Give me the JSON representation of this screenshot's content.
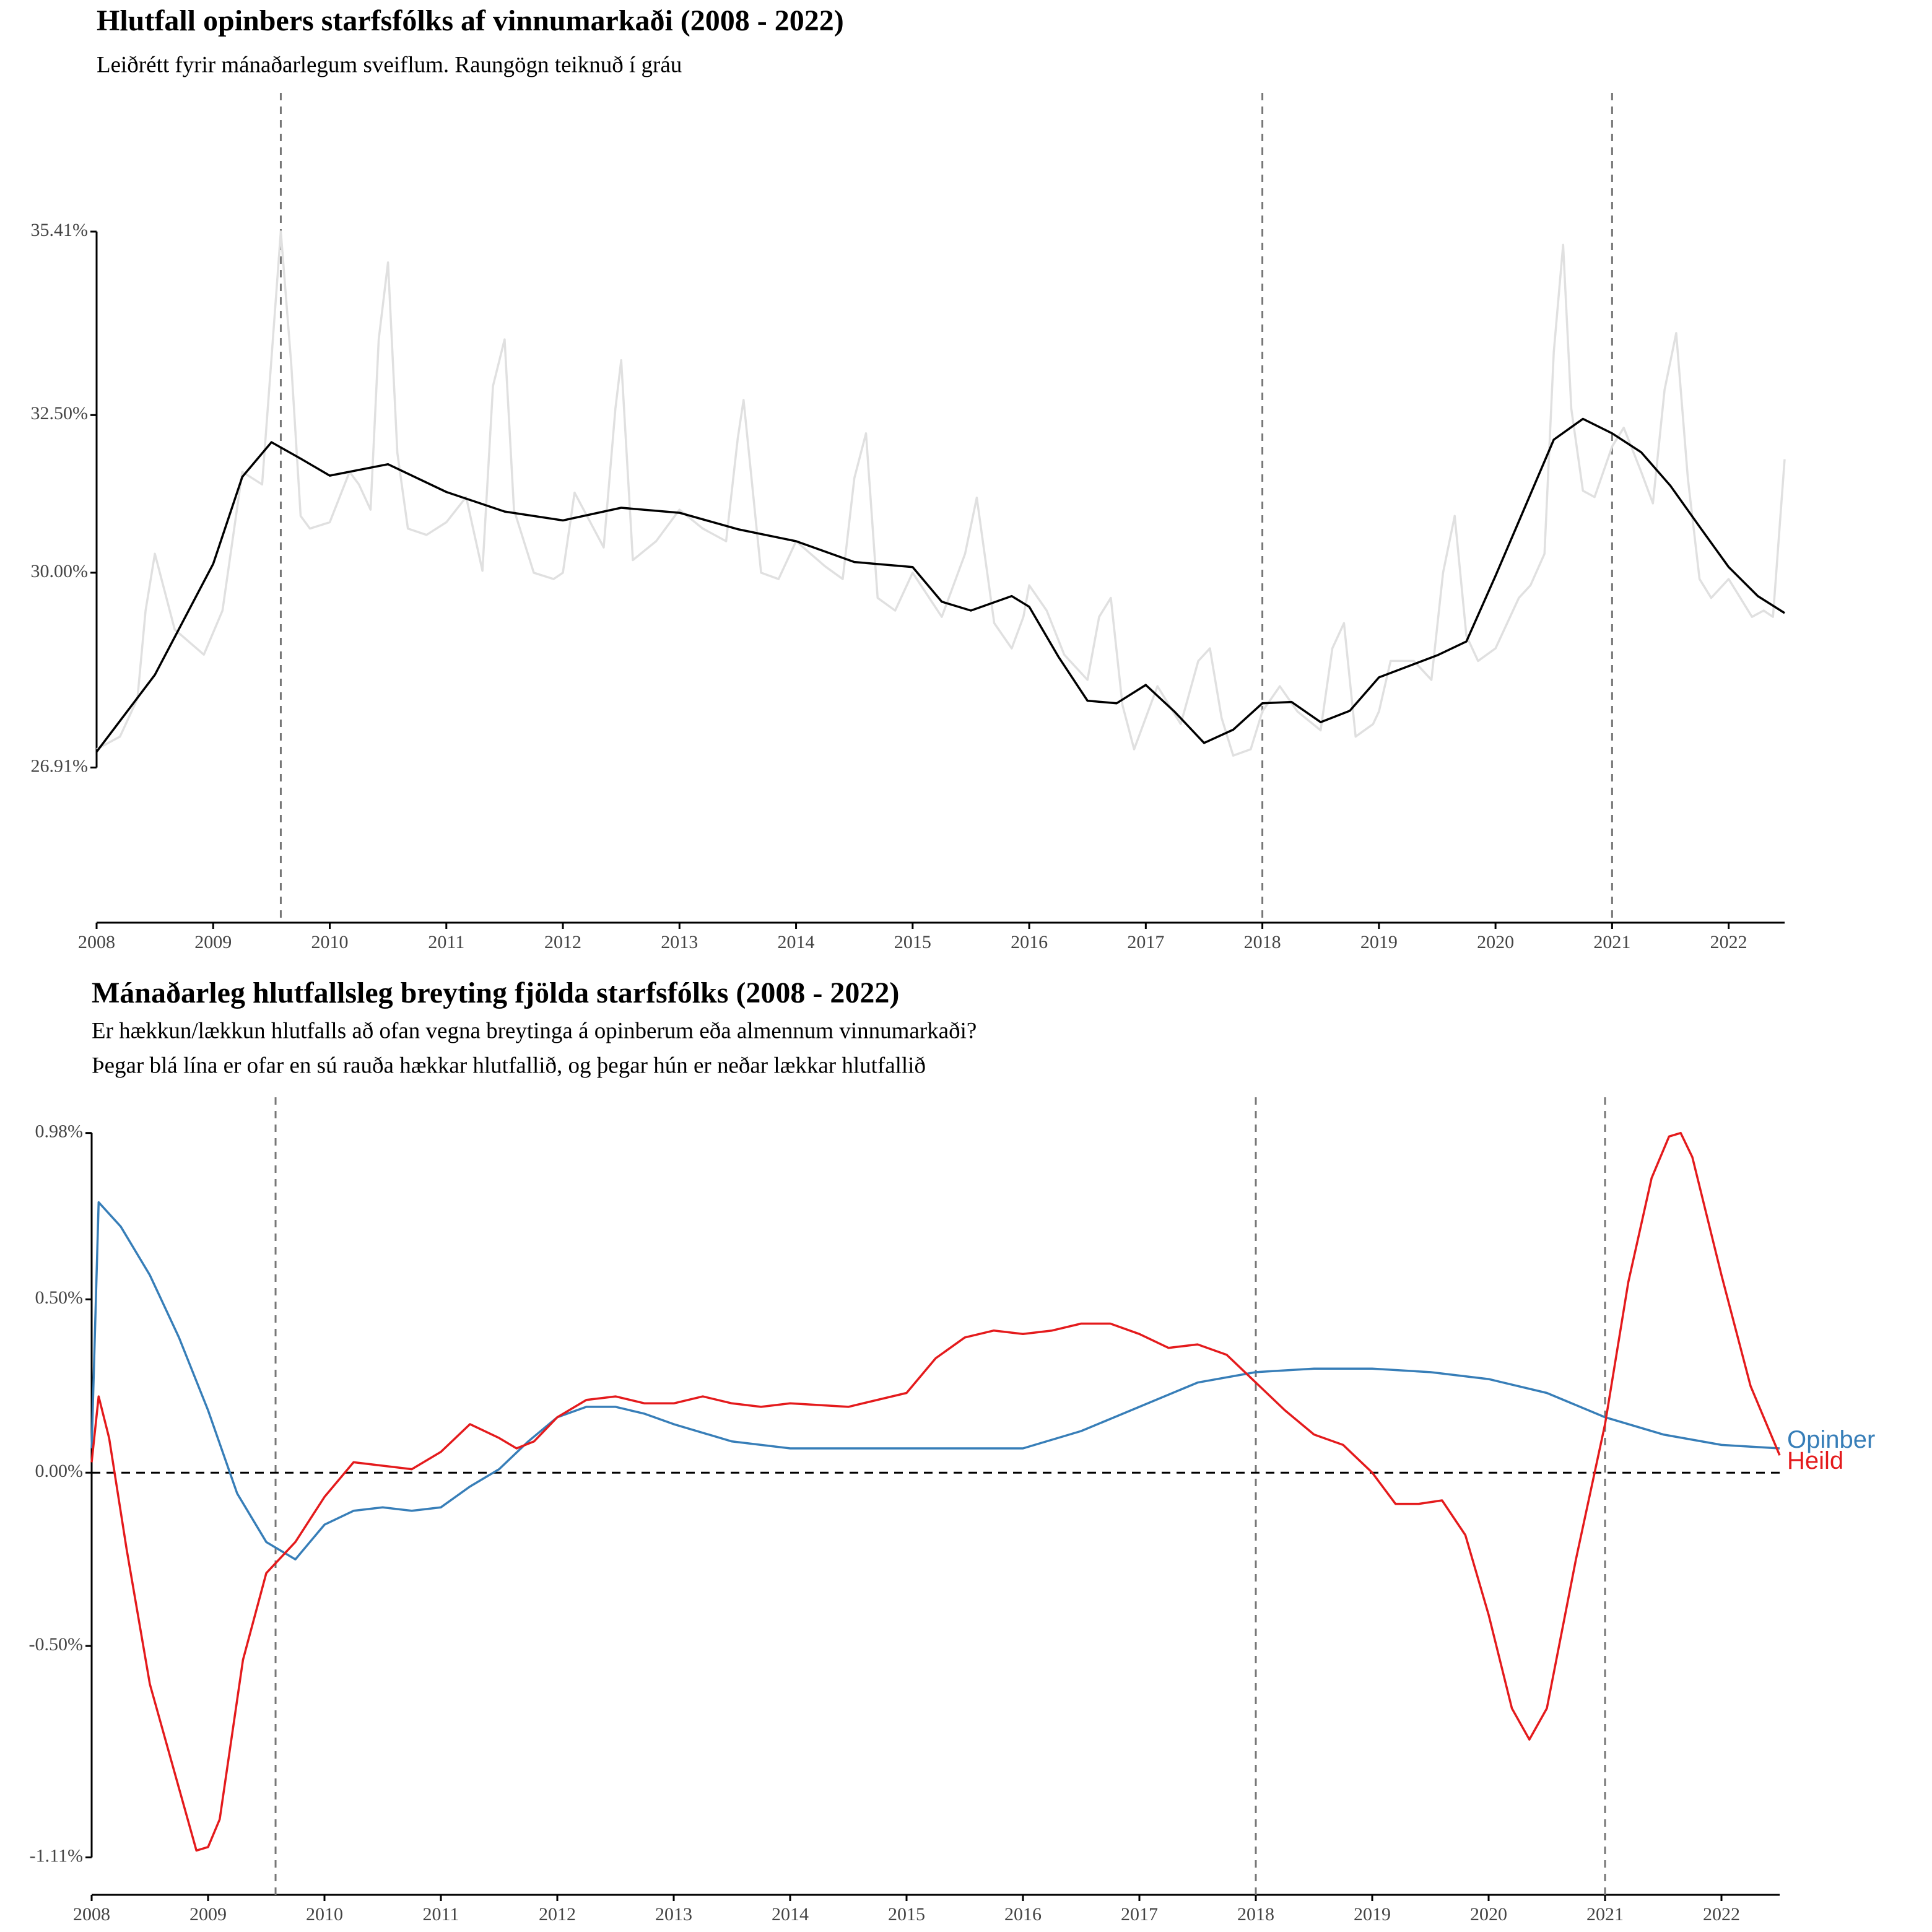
{
  "chart_data": [
    {
      "type": "line",
      "title": "Hlutfall opinbers starfsfólks af vinnumarkaði (2008 - 2022)",
      "subtitle": [
        "Leiðrétt fyrir mánaðarlegum sveiflum. Raungögn teiknuð í gráu"
      ],
      "xlim": [
        2008,
        2022.48
      ],
      "xticks": [
        2008,
        2009,
        2010,
        2011,
        2012,
        2013,
        2014,
        2015,
        2016,
        2017,
        2018,
        2019,
        2020,
        2021,
        2022
      ],
      "ylim": [
        24.45,
        37.61
      ],
      "yticks": [
        {
          "value": 26.91,
          "label": "26.91%"
        },
        {
          "value": 30.0,
          "label": "30.00%"
        },
        {
          "value": 32.5,
          "label": "32.50%"
        },
        {
          "value": 35.41,
          "label": "35.41%"
        }
      ],
      "vlines": [
        2009.58,
        2018,
        2021
      ],
      "series": [
        {
          "color": "#e0e0e0",
          "x": [
            2008.0,
            2008.2,
            2008.35,
            2008.42,
            2008.5,
            2008.67,
            2008.92,
            2009.08,
            2009.25,
            2009.42,
            2009.5,
            2009.58,
            2009.67,
            2009.75,
            2009.83,
            2010.0,
            2010.17,
            2010.25,
            2010.35,
            2010.42,
            2010.5,
            2010.58,
            2010.67,
            2010.83,
            2011.0,
            2011.17,
            2011.31,
            2011.4,
            2011.5,
            2011.58,
            2011.75,
            2011.92,
            2012.0,
            2012.1,
            2012.35,
            2012.45,
            2012.5,
            2012.6,
            2012.8,
            2013.0,
            2013.2,
            2013.4,
            2013.5,
            2013.55,
            2013.7,
            2013.85,
            2014.0,
            2014.25,
            2014.4,
            2014.5,
            2014.6,
            2014.7,
            2014.85,
            2015.0,
            2015.25,
            2015.45,
            2015.55,
            2015.7,
            2015.85,
            2015.95,
            2016.0,
            2016.15,
            2016.3,
            2016.5,
            2016.6,
            2016.7,
            2016.8,
            2016.9,
            2017.0,
            2017.1,
            2017.3,
            2017.45,
            2017.55,
            2017.65,
            2017.75,
            2017.9,
            2018.0,
            2018.15,
            2018.3,
            2018.5,
            2018.6,
            2018.7,
            2018.8,
            2018.95,
            2019.0,
            2019.1,
            2019.3,
            2019.45,
            2019.55,
            2019.65,
            2019.75,
            2019.85,
            2020.0,
            2020.2,
            2020.3,
            2020.42,
            2020.5,
            2020.58,
            2020.65,
            2020.75,
            2020.85,
            2021.0,
            2021.1,
            2021.25,
            2021.35,
            2021.45,
            2021.55,
            2021.65,
            2021.75,
            2021.85,
            2022.0,
            2022.1,
            2022.2,
            2022.3,
            2022.38,
            2022.48
          ],
          "values": [
            27.2,
            27.4,
            28.0,
            29.4,
            30.3,
            29.1,
            28.7,
            29.4,
            31.6,
            31.4,
            33.4,
            35.41,
            33.3,
            30.9,
            30.7,
            30.8,
            31.6,
            31.4,
            31.0,
            33.7,
            34.92,
            31.9,
            30.7,
            30.6,
            30.8,
            31.2,
            30.03,
            32.96,
            33.7,
            31.0,
            30.0,
            29.9,
            30.0,
            31.27,
            30.4,
            32.6,
            33.37,
            30.2,
            30.5,
            31.0,
            30.7,
            30.5,
            32.13,
            32.74,
            30.0,
            29.9,
            30.5,
            30.1,
            29.9,
            31.5,
            32.21,
            29.6,
            29.4,
            30.0,
            29.3,
            30.3,
            31.19,
            29.2,
            28.8,
            29.3,
            29.8,
            29.4,
            28.7,
            28.3,
            29.3,
            29.6,
            27.9,
            27.2,
            27.7,
            28.2,
            27.6,
            28.6,
            28.8,
            27.7,
            27.1,
            27.2,
            27.8,
            28.2,
            27.8,
            27.5,
            28.8,
            29.2,
            27.4,
            27.6,
            27.8,
            28.6,
            28.6,
            28.3,
            30.0,
            30.9,
            29.0,
            28.6,
            28.8,
            29.6,
            29.8,
            30.3,
            33.5,
            35.2,
            32.6,
            31.3,
            31.2,
            32.0,
            32.3,
            31.6,
            31.1,
            32.9,
            33.8,
            31.5,
            29.9,
            29.6,
            29.9,
            29.6,
            29.3,
            29.4,
            29.3,
            31.8
          ]
        },
        {
          "color": "#000000",
          "x": [
            2008.0,
            2008.5,
            2009.0,
            2009.25,
            2009.5,
            2009.75,
            2010.0,
            2010.5,
            2011.0,
            2011.5,
            2012.0,
            2012.5,
            2013.0,
            2013.5,
            2014.0,
            2014.5,
            2015.0,
            2015.25,
            2015.5,
            2015.85,
            2016.0,
            2016.25,
            2016.5,
            2016.75,
            2017.0,
            2017.25,
            2017.5,
            2017.75,
            2018.0,
            2018.25,
            2018.5,
            2018.75,
            2019.0,
            2019.5,
            2019.75,
            2020.0,
            2020.25,
            2020.5,
            2020.75,
            2021.0,
            2021.25,
            2021.5,
            2021.75,
            2022.0,
            2022.25,
            2022.48
          ],
          "values": [
            27.16,
            28.38,
            30.14,
            31.52,
            32.07,
            31.81,
            31.54,
            31.72,
            31.28,
            30.97,
            30.83,
            31.03,
            30.95,
            30.69,
            30.5,
            30.17,
            30.09,
            29.54,
            29.4,
            29.63,
            29.46,
            28.67,
            27.97,
            27.93,
            28.22,
            27.79,
            27.3,
            27.51,
            27.93,
            27.95,
            27.63,
            27.81,
            28.34,
            28.69,
            28.91,
            29.95,
            31.03,
            32.11,
            32.44,
            32.21,
            31.91,
            31.38,
            30.73,
            30.09,
            29.63,
            29.36
          ]
        }
      ]
    },
    {
      "type": "line",
      "title": "Mánaðarleg hlutfallsleg breyting fjölda starfsfólks (2008 - 2022)",
      "subtitle": [
        "Er hækkun/lækkun hlutfalls að ofan vegna breytinga á opinberum eða almennum vinnumarkaði?",
        "Þegar blá lína er ofar en sú rauða hækkar hlutfallið, og þegar hún er neðar lækkar hlutfallið"
      ],
      "xlim": [
        2008,
        2022.5
      ],
      "xticks": [
        2008,
        2009,
        2010,
        2011,
        2012,
        2013,
        2014,
        2015,
        2016,
        2017,
        2018,
        2019,
        2020,
        2021,
        2022
      ],
      "ylim": [
        -1.218,
        1.083
      ],
      "yticks": [
        {
          "value": -1.11,
          "label": "-1.11%"
        },
        {
          "value": -0.5,
          "label": "-0.50%"
        },
        {
          "value": 0,
          "label": "0.00%"
        },
        {
          "value": 0.5,
          "label": "0.50%"
        },
        {
          "value": 0.98,
          "label": "0.98%"
        }
      ],
      "vlines": [
        2009.58,
        2018,
        2021
      ],
      "hline": 0,
      "series": [
        {
          "name": "Opinber",
          "color": "#377eb8",
          "x": [
            2008.0,
            2008.06,
            2008.25,
            2008.5,
            2008.75,
            2009.0,
            2009.25,
            2009.5,
            2009.75,
            2010.0,
            2010.25,
            2010.5,
            2010.75,
            2011.0,
            2011.25,
            2011.5,
            2011.75,
            2012.0,
            2012.25,
            2012.5,
            2012.75,
            2013.0,
            2013.5,
            2014.0,
            2014.5,
            2015.0,
            2015.5,
            2016.0,
            2016.5,
            2017.0,
            2017.5,
            2018.0,
            2018.5,
            2019.0,
            2019.5,
            2020.0,
            2020.5,
            2021.0,
            2021.5,
            2022.0,
            2022.5
          ],
          "values": [
            0.07,
            0.78,
            0.71,
            0.57,
            0.39,
            0.18,
            -0.06,
            -0.2,
            -0.25,
            -0.15,
            -0.11,
            -0.1,
            -0.11,
            -0.1,
            -0.04,
            0.01,
            0.09,
            0.16,
            0.19,
            0.19,
            0.17,
            0.14,
            0.09,
            0.07,
            0.07,
            0.07,
            0.07,
            0.07,
            0.12,
            0.19,
            0.26,
            0.29,
            0.3,
            0.3,
            0.29,
            0.27,
            0.23,
            0.16,
            0.11,
            0.08,
            0.07
          ]
        },
        {
          "name": "Heild",
          "color": "#e41a1c",
          "x": [
            2008.0,
            2008.06,
            2008.15,
            2008.3,
            2008.5,
            2008.75,
            2008.9,
            2009.0,
            2009.1,
            2009.3,
            2009.5,
            2009.75,
            2010.0,
            2010.25,
            2010.5,
            2010.75,
            2011.0,
            2011.25,
            2011.5,
            2011.65,
            2011.8,
            2012.0,
            2012.25,
            2012.5,
            2012.75,
            2013.0,
            2013.25,
            2013.5,
            2013.75,
            2014.0,
            2014.5,
            2015.0,
            2015.25,
            2015.5,
            2015.75,
            2016.0,
            2016.25,
            2016.5,
            2016.75,
            2017.0,
            2017.25,
            2017.5,
            2017.75,
            2018.0,
            2018.25,
            2018.5,
            2018.75,
            2019.0,
            2019.2,
            2019.4,
            2019.6,
            2019.8,
            2020.0,
            2020.2,
            2020.35,
            2020.5,
            2020.75,
            2021.0,
            2021.2,
            2021.4,
            2021.55,
            2021.65,
            2021.75,
            2022.0,
            2022.25,
            2022.5
          ],
          "values": [
            0.03,
            0.22,
            0.1,
            -0.22,
            -0.61,
            -0.91,
            -1.09,
            -1.08,
            -1.0,
            -0.54,
            -0.29,
            -0.2,
            -0.07,
            0.03,
            0.02,
            0.01,
            0.06,
            0.14,
            0.1,
            0.07,
            0.09,
            0.16,
            0.21,
            0.22,
            0.2,
            0.2,
            0.22,
            0.2,
            0.19,
            0.2,
            0.19,
            0.23,
            0.33,
            0.39,
            0.41,
            0.4,
            0.41,
            0.43,
            0.43,
            0.4,
            0.36,
            0.37,
            0.34,
            0.26,
            0.18,
            0.11,
            0.08,
            0.0,
            -0.09,
            -0.09,
            -0.08,
            -0.18,
            -0.41,
            -0.68,
            -0.77,
            -0.68,
            -0.25,
            0.14,
            0.55,
            0.85,
            0.97,
            0.98,
            0.91,
            0.57,
            0.25,
            0.05
          ]
        }
      ]
    }
  ]
}
